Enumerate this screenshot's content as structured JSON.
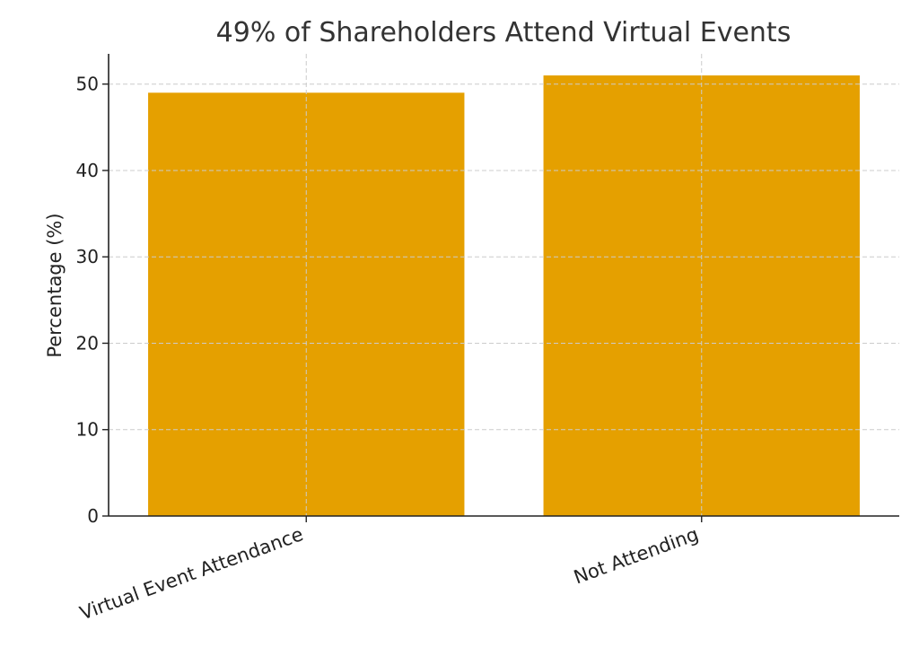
{
  "chart_data": {
    "type": "bar",
    "title": "49% of Shareholders Attend Virtual Events",
    "xlabel": "",
    "ylabel": "Percentage (%)",
    "categories": [
      "Virtual Event Attendance",
      "Not Attending"
    ],
    "values": [
      49,
      51
    ],
    "ylim": [
      0,
      53.5
    ],
    "yticks": [
      0,
      10,
      20,
      30,
      40,
      50
    ],
    "grid": true,
    "bar_color": "#e5a000"
  }
}
